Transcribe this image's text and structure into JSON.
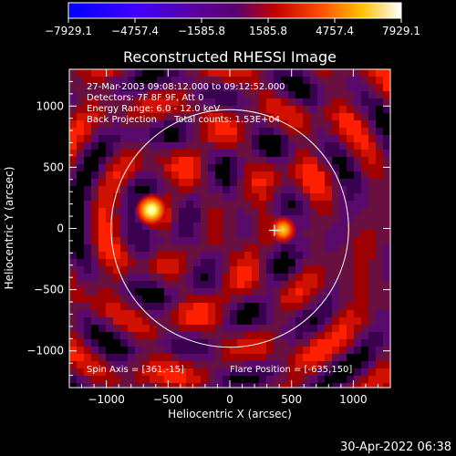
{
  "colorbar": {
    "min": -7929.1,
    "max": 7929.1,
    "tick_labels": [
      "-7929.1",
      "-4757.4",
      "-1585.8",
      "1585.8",
      "4757.4",
      "7929.1"
    ],
    "colors": [
      "#0000ff",
      "#4000ff",
      "#5a0080",
      "#600070",
      "#ff0000",
      "#ff8000",
      "#ffff00",
      "#ffffff"
    ]
  },
  "chart_data": {
    "type": "heatmap",
    "title": "Reconstructed RHESSI Image",
    "xlabel": "Heliocentric X (arcsec)",
    "ylabel": "Heliocentric Y (arcsec)",
    "xlim": [
      -1300,
      1300
    ],
    "ylim": [
      -1300,
      1300
    ],
    "x_ticks": [
      -1000,
      -500,
      0,
      500,
      1000
    ],
    "y_ticks": [
      -1000,
      -500,
      0,
      500,
      1000
    ],
    "x_tick_labels": [
      "−1000",
      "−500",
      "0",
      "500",
      "1000"
    ],
    "y_tick_labels": [
      "−1000",
      "−500",
      "0",
      "500",
      "1000"
    ],
    "info_lines": [
      "27-Mar-2003 09:08:12.000 to 09:12:52.000",
      "Detectors: 7F 8F 9F, Att 0",
      "Energy Range: 6.0 - 12.0 keV",
      "Back Projection      Total counts: 1.53E+04"
    ],
    "spin_axis": "Spin Axis = [361,-15]",
    "flare_position_text": "Flare Position = [-635,150]",
    "sources": [
      {
        "x": -635,
        "y": 150,
        "intensity": 7929.1
      },
      {
        "x": 430,
        "y": -10,
        "intensity": 5200
      }
    ],
    "solar_limb_radius": 962,
    "limb_center": [
      0,
      0
    ],
    "spin_axis_marker": [
      361,
      -15
    ]
  },
  "footer": {
    "timestamp": "30-Apr-2022 06:38"
  }
}
